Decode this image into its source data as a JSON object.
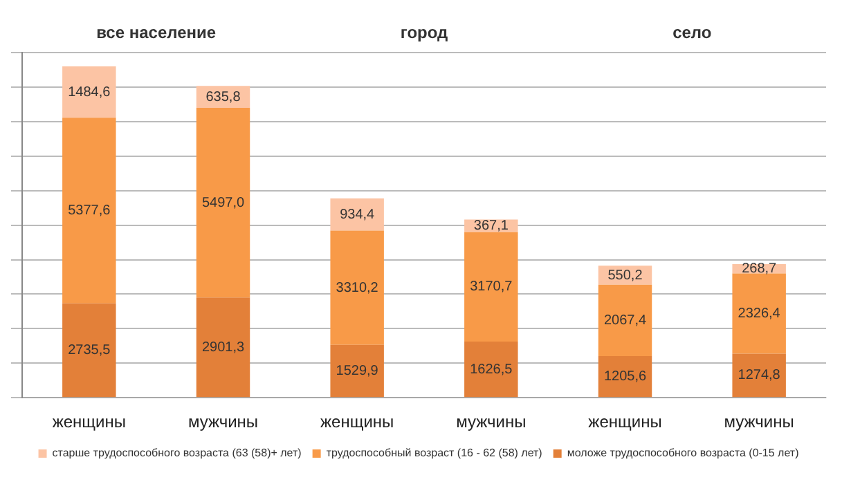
{
  "chart_data": {
    "type": "bar",
    "stacked": true,
    "categories": [
      "женщины",
      "мужчины",
      "женщины",
      "мужчины",
      "женщины",
      "мужчины"
    ],
    "annotations": [
      "все население",
      "город",
      "село"
    ],
    "series": [
      {
        "name": "моложе трудоспособного возраста (0-15 лет)",
        "color": "#e38039",
        "values": [
          2735.5,
          2901.3,
          1529.9,
          1626.5,
          1205.6,
          1274.8
        ],
        "value_labels": [
          "2735,5",
          "2901,3",
          "1529,9",
          "1626,5",
          "1205,6",
          "1274,8"
        ]
      },
      {
        "name": "трудоспособный возраст (16 - 62 (58) лет)",
        "color": "#f89a48",
        "values": [
          5377.6,
          5497.0,
          3310.2,
          3170.7,
          2067.4,
          2326.4
        ],
        "value_labels": [
          "5377,6",
          "5497,0",
          "3310,2",
          "3170,7",
          "2067,4",
          "2326,4"
        ]
      },
      {
        "name": "старше трудоспособного возраста (63 (58)+ лет)",
        "color": "#fcc4a4",
        "values": [
          1484.6,
          635.8,
          934.4,
          367.1,
          550.2,
          268.7
        ],
        "value_labels": [
          "1484,6",
          "635,8",
          "934,4",
          "367,1",
          "550,2",
          "268,7"
        ]
      }
    ],
    "grid": "y",
    "legend": "bottom",
    "tick_labels": "x"
  }
}
